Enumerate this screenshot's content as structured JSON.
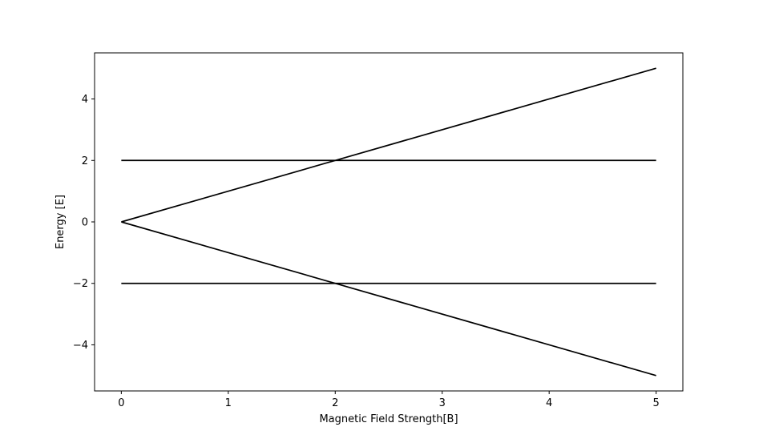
{
  "chart_data": {
    "type": "line",
    "title": "",
    "xlabel": "Magnetic Field Strength[B]",
    "ylabel": "Energy [E]",
    "xlim": [
      -0.25,
      5.25
    ],
    "ylim": [
      -5.5,
      5.5
    ],
    "x_ticks": [
      0,
      1,
      2,
      3,
      4,
      5
    ],
    "y_ticks": [
      -4,
      -2,
      0,
      2,
      4
    ],
    "x_tick_labels": [
      "0",
      "1",
      "2",
      "3",
      "4",
      "5"
    ],
    "y_tick_labels": [
      "−4",
      "−2",
      "0",
      "2",
      "4"
    ],
    "grid": false,
    "legend": "none",
    "line_color": "#000000",
    "series": [
      {
        "x": [
          0,
          5
        ],
        "y": [
          2,
          2
        ]
      },
      {
        "x": [
          0,
          1.9,
          2.0,
          2.1,
          5
        ],
        "y": [
          0,
          1.9,
          2.0,
          2.1,
          5
        ]
      },
      {
        "x": [
          0,
          1.9,
          2.0,
          2.1,
          5
        ],
        "y": [
          0,
          -1.9,
          -2.0,
          -2.1,
          -5
        ]
      },
      {
        "x": [
          0,
          5
        ],
        "y": [
          -2,
          -2
        ]
      }
    ]
  }
}
